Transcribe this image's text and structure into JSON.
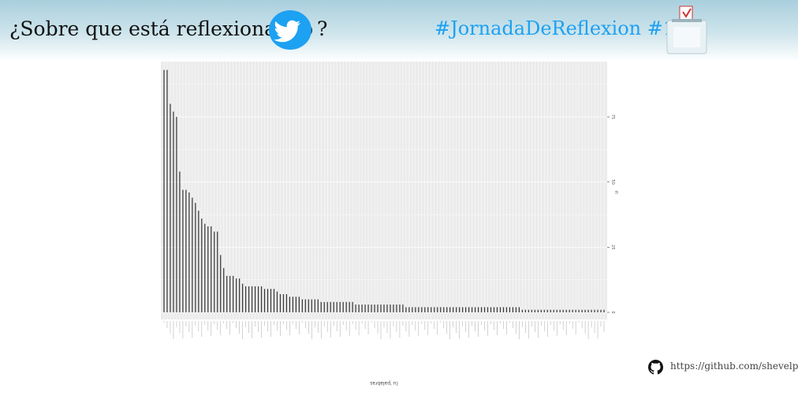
{
  "header": {
    "title": "¿Sobre que está reflexionando",
    "question_mark": "?",
    "hashtag": "#JornadaDeReflexion #10N",
    "twitter_icon": "twitter-bird-icon",
    "ballot_icon": "ballot-box-icon",
    "accent": "#1da1f2"
  },
  "footer": {
    "github_icon": "github-icon",
    "link": "https://github.com/shevelp"
  },
  "chart_data": {
    "type": "bar",
    "ylabel": "n",
    "xlabel": "(u 'palabras",
    "ylim": [
      0,
      95
    ],
    "yticks": [
      0,
      25,
      50,
      75
    ],
    "grid": true,
    "bar_color": "#333333",
    "values": [
      93,
      93,
      80,
      77,
      75,
      54,
      47,
      47,
      46,
      44,
      42,
      39,
      36,
      34,
      33,
      33,
      31,
      31,
      22,
      17,
      14,
      14,
      14,
      13,
      13,
      11,
      10,
      10,
      10,
      10,
      10,
      10,
      9,
      9,
      9,
      9,
      8,
      7,
      7,
      7,
      6,
      6,
      6,
      6,
      5,
      5,
      5,
      5,
      5,
      5,
      4,
      4,
      4,
      4,
      4,
      4,
      4,
      4,
      4,
      4,
      4,
      3,
      3,
      3,
      3,
      3,
      3,
      3,
      3,
      3,
      3,
      3,
      3,
      3,
      3,
      3,
      3,
      2,
      2,
      2,
      2,
      2,
      2,
      2,
      2,
      2,
      2,
      2,
      2,
      2,
      2,
      2,
      2,
      2,
      2,
      2,
      2,
      2,
      2,
      2,
      2,
      2,
      2,
      2,
      2,
      2,
      2,
      2,
      2,
      2,
      2,
      2,
      2,
      2,
      1,
      1,
      1,
      1,
      1,
      1,
      1,
      1,
      1,
      1,
      1,
      1,
      1,
      1,
      1,
      1,
      1,
      1,
      1,
      1,
      1,
      1,
      1,
      1,
      1,
      1,
      1
    ]
  }
}
